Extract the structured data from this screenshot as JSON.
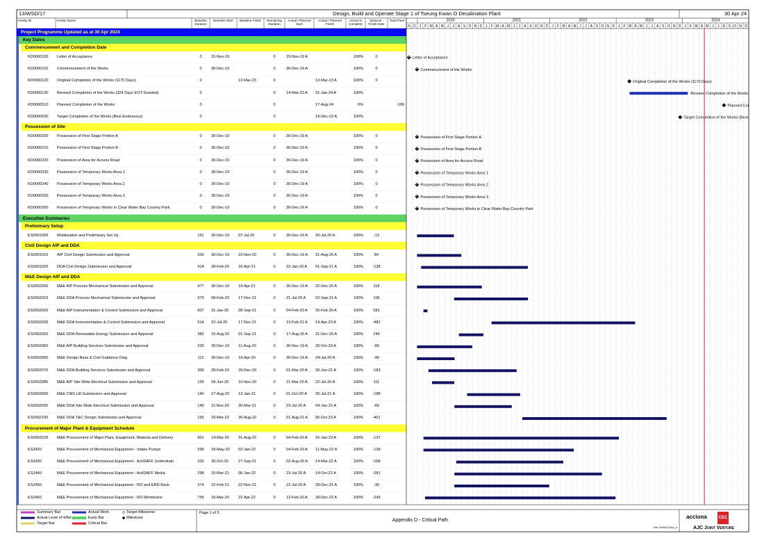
{
  "header": {
    "contract": "13/WSD/17",
    "title": "Design, Build and Operate Stage 1 of Tseung Kwan O Desalination Plant",
    "date": "30 Apr 24"
  },
  "columns": [
    "Activity ID",
    "Activity Name",
    "Baseline Duration",
    "Baseline Start",
    "Baseline Finish",
    "Remaining Duration",
    "Actual / Planned Start",
    "Actual / Planned Finish",
    "Actual % Complete",
    "Variance - Finish Date",
    "Total Float"
  ],
  "timeline": {
    "years": [
      "2020",
      "2021",
      "2022",
      "2023",
      "2024"
    ],
    "months": [
      "N",
      "D",
      "J",
      "F",
      "M",
      "A",
      "M",
      "J",
      "J",
      "A",
      "S",
      "O",
      "N",
      "D",
      "J",
      "F",
      "M",
      "A",
      "M",
      "J",
      "J",
      "A",
      "S",
      "O",
      "N",
      "D",
      "J",
      "F",
      "M",
      "A",
      "M",
      "J",
      "J",
      "A",
      "S",
      "O",
      "N",
      "D",
      "J",
      "F",
      "M",
      "A",
      "M",
      "J",
      "J",
      "A",
      "S",
      "O",
      "N",
      "D",
      "J",
      "F",
      "M",
      "A",
      "M",
      "J",
      "J",
      "A",
      "S",
      "O",
      "N",
      "D"
    ]
  },
  "programme": {
    "title": "Project Programme Updated as at 30 Apr 2024",
    "groups": [
      {
        "title": "Key Dates",
        "sections": [
          {
            "title": "Commencement and Completion Date",
            "activities": [
              [
                "KD0000100",
                "Letter of Acceptance",
                "0",
                "15-Nov-19",
                null,
                "0",
                "15-Nov-19 A",
                null,
                "100%",
                "0",
                null
              ],
              [
                "KD0000110",
                "Commencement of the Works",
                "0",
                "30-Dec-19",
                null,
                "0",
                "30-Dec-19 A",
                null,
                "100%",
                "0",
                null
              ],
              [
                "KD0000120",
                "Original Completion of the Works (1170 Days)",
                "0",
                null,
                "13-Mar-23",
                "0",
                null,
                "13-Mar-23 A",
                "100%",
                "0",
                null
              ],
              [
                "KD0000130",
                "Revised Completion of the Works (324 Days EOT Granted)",
                "0",
                null,
                null,
                "0",
                "14-Mar-23 A",
                "31-Jan-24 A",
                "100%",
                null,
                null
              ],
              [
                "KD0000510",
                "Planned Completion of the Works",
                "0",
                null,
                null,
                "0",
                null,
                "17-Aug-24",
                "0%",
                null,
                "-199"
              ],
              [
                "KD0000520",
                "Target Completion of the Works (Best Endeavour)",
                "0",
                null,
                null,
                "0",
                null,
                "19-Dec-23 A",
                "100%",
                null,
                null
              ]
            ]
          },
          {
            "title": "Possession of Site",
            "activities": [
              [
                "KD0000200",
                "Possession of First Stage Portion A",
                "0",
                "30-Dec-19",
                null,
                "0",
                "30-Dec-19 A",
                null,
                "100%",
                "0",
                null
              ],
              [
                "KD0000210",
                "Possession of First Stage Portion B",
                "0",
                "30-Dec-19",
                null,
                "0",
                "30-Dec-19 A",
                null,
                "100%",
                "0",
                null
              ],
              [
                "KD0000220",
                "Possession of Area for Access Road",
                "0",
                "30-Dec-19",
                null,
                "0",
                "30-Dec-19 A",
                null,
                "100%",
                "0",
                null
              ],
              [
                "KD0000230",
                "Possession of Temporary Works Area 1",
                "0",
                "30-Dec-19",
                null,
                "0",
                "30-Dec-19 A",
                null,
                "100%",
                "0",
                null
              ],
              [
                "KD0000240",
                "Possession of Temporary Works Area 2",
                "0",
                "30-Dec-19",
                null,
                "0",
                "30-Dec-19 A",
                null,
                "100%",
                "0",
                null
              ],
              [
                "KD0000250",
                "Possession of Temporary Works Area 3",
                "0",
                "30-Dec-19",
                null,
                "0",
                "30-Dec-19 A",
                null,
                "100%",
                "0",
                null
              ],
              [
                "KD0000260",
                "Possession of Temporary Works in Clear Water Bay Country Park",
                "0",
                "30-Dec-19",
                null,
                "0",
                "30-Dec-19 A",
                null,
                "100%",
                "0",
                null
              ]
            ]
          }
        ]
      },
      {
        "title": "Executive Summaries",
        "sections": [
          {
            "title": "Preliminary Setup",
            "activities": [
              [
                "ES0001000",
                "Mobilization and Preliminary Set Up",
                "191",
                "30-Dec-19",
                "07-Jul-20",
                "0",
                "30-Dec-19 A",
                "20-Jul-20 A",
                "100%",
                "-13",
                null
              ]
            ]
          },
          {
            "title": "Civil Design AIP and DDA",
            "activities": [
              [
                "ES0001010",
                "AIP Civil Design Submission and Approval",
                "330",
                "30-Dec-19",
                "23-Nov-20",
                "0",
                "30-Dec-19 A",
                "31-Aug-20 A",
                "100%",
                "84",
                null
              ],
              [
                "ES0001020",
                "DDA Civil Design Submission and Approval",
                "414",
                "28-Feb-20",
                "16-Apr-21",
                "0",
                "22-Jan-20 A",
                "01-Sep-21 A",
                "100%",
                "-138",
                null
              ]
            ]
          },
          {
            "title": "M&E Design AIP and DDA",
            "activities": [
              [
                "ES0002000",
                "M&E AIP Process Mechanical Submission and Approval",
                "477",
                "30-Dec-19",
                "19-Apr-21",
                "0",
                "30-Dec-19 A",
                "22-Dec-20 A",
                "100%",
                "118",
                null
              ],
              [
                "ES0002010",
                "M&E DDA Process Mechanical Submission and Approval",
                "679",
                "08-Feb-20",
                "17-Dec-21",
                "0",
                "21-Jul-20 A",
                "02-Sep-21 A",
                "100%",
                "106",
                null
              ],
              [
                "ES0002020",
                "M&E AIP Instrumentation & Control Submission and Approval",
                "607",
                "31-Jan-20",
                "28-Sep-21",
                "0",
                "04-Feb-20 A",
                "25-Feb-20 A",
                "100%",
                "581",
                null
              ],
              [
                "ES0002030",
                "M&E DDA Instrumentation & Control Submission and Approval",
                "514",
                "22-Jul-20",
                "17-Dec-21",
                "0",
                "13-Feb-21 A",
                "14-Apr-23 A",
                "100%",
                "-482",
                null
              ],
              [
                "ES0002050",
                "M&E DDA Renewable Energy Submission and Approval",
                "382",
                "16-Aug-20",
                "01-Sep-21",
                "0",
                "17-Aug-20 A",
                "31-Dec-20 A",
                "100%",
                "244",
                null
              ],
              [
                "ES0002060",
                "M&E AIP Building Services Submission and Approval",
                "226",
                "30-Dec-19",
                "11-Aug-20",
                "0",
                "30-Dec-19 A",
                "30-Oct-20 A",
                "100%",
                "-80",
                null
              ],
              [
                "ES0002065",
                "M&E Design Base & Civil Guidance Dwg",
                "112",
                "30-Dec-19",
                "19-Apr-20",
                "0",
                "30-Dec-19 A",
                "24-Jul-20 A",
                "100%",
                "-96",
                null
              ],
              [
                "ES0002070",
                "M&E DDA Building Services Submission and Approval",
                "306",
                "28-Feb-20",
                "29-Dec-20",
                "0",
                "01-Mar-20 A",
                "30-Jun-21 A",
                "100%",
                "-183",
                null
              ],
              [
                "ES0002085",
                "M&E AIP Site Wide Electrical Submission and Approval",
                "155",
                "09-Jun-20",
                "10-Nov-20",
                "0",
                "21-Mar-20 A",
                "22-Jul-20 A",
                "100%",
                "111",
                null
              ],
              [
                "ES0002090",
                "M&E CMS Lift Submission and Approval",
                "140",
                "27-Aug-20",
                "13-Jan-21",
                "0",
                "01-Oct-20 A",
                "20-Jul-21 A",
                "100%",
                "-188",
                null
              ],
              [
                "ES0002095",
                "M&E DDA Site Wide Electrical Submission and Approval",
                "140",
                "11-Nov-20",
                "30-Mar-21",
                "0",
                "23-Jul-20 A",
                "04-Jun-21 A",
                "100%",
                "-66",
                null
              ],
              [
                "ES0002100",
                "M&E DDA T&C Design Submission and Approval",
                "155",
                "29-Mar-22",
                "30-Aug-22",
                "0",
                "01-Aug-21 A",
                "05-Oct-23 A",
                "100%",
                "-401",
                null
              ]
            ]
          },
          {
            "title": "Procurement of Major Plant & Equipment Schedule",
            "activities": [
              [
                "ES0003220",
                "M&E Procurement of Major Plant, Equipment, Material and Delivery",
                "901",
                "14-Mar-20",
                "31-Aug-22",
                "0",
                "04-Feb-20 A",
                "16-Jan-23 A",
                "100%",
                "-137",
                null
              ],
              [
                "ES2420",
                "M&E Procurement of Mechanical Equipment - Intake Pumps",
                "595",
                "18-May-20",
                "02-Jan-22",
                "0",
                "04-Feb-20 A",
                "11-May-22 A",
                "100%",
                "-128",
                null
              ],
              [
                "ES2430",
                "M&E Procurement of Mechanical Equipment - Act/DAFF Underdrain",
                "333",
                "30-Oct-20",
                "27-Sep-21",
                "0",
                "02-Aug-20 A",
                "14-Mar-22 A",
                "100%",
                "-168",
                null
              ],
              [
                "ES2440",
                "M&E Procurement of Mechanical Equipment - Act/DAFF Media",
                "298",
                "15-Mar-21",
                "06-Jan-22",
                "0",
                "23-Jul-20 A",
                "14-Oct-22 A",
                "100%",
                "-281",
                null
              ],
              [
                "ES2450",
                "M&E Procurement of Mechanical Equipment - RO and ERD Rack",
                "274",
                "22-Feb-21",
                "22-Nov-21",
                "0",
                "22-Jul-20 A",
                "28-Dec-21 A",
                "100%",
                "-36",
                null
              ],
              [
                "ES2460",
                "M&E Procurement of Mechanical Equipment - RO Membrane",
                "755",
                "29-Mar-20",
                "22-Apr-22",
                "0",
                "12-Feb-20 A",
                "28-Dec-22 A",
                "100%",
                "-249",
                null
              ]
            ]
          }
        ]
      }
    ]
  },
  "legend": [
    "Summary Bar",
    "Actual Level of Effort",
    "Target Bar",
    "Actual Work",
    "Early Bar",
    "Critical Bar",
    "Target Milestone",
    "Milestone"
  ],
  "footer": {
    "page": "Page 1 of 5",
    "caption": "Appendix D - Critical Path",
    "file": "File: M/062/2404_d",
    "logos": [
      "acciona",
      "CEC",
      "AJC Joint Venture"
    ]
  }
}
